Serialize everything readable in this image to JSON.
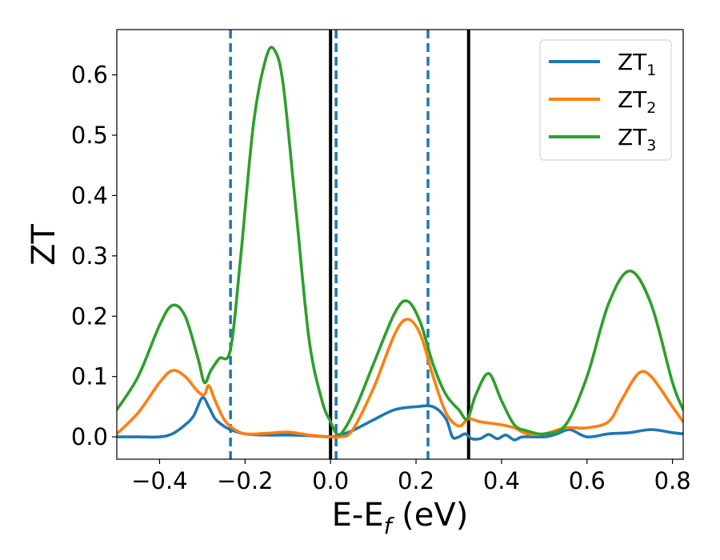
{
  "chart_data": {
    "type": "line",
    "xlabel": "E-E",
    "xlabel_sub": "f",
    "xlabel_unit": " (eV)",
    "ylabel": "ZT",
    "xlim": [
      -0.5,
      0.825
    ],
    "ylim": [
      -0.037,
      0.675
    ],
    "xticks": [
      -0.4,
      -0.2,
      0.0,
      0.2,
      0.4,
      0.6,
      0.8
    ],
    "xtick_labels": [
      "−0.4",
      "−0.2",
      "0.0",
      "0.2",
      "0.4",
      "0.6",
      "0.8"
    ],
    "yticks": [
      0.0,
      0.1,
      0.2,
      0.3,
      0.4,
      0.5,
      0.6
    ],
    "ytick_labels": [
      "0.0",
      "0.1",
      "0.2",
      "0.3",
      "0.4",
      "0.5",
      "0.6"
    ],
    "grid": false,
    "legend_position": "top-right",
    "vlines_dashed": [
      -0.234,
      0.013,
      0.228
    ],
    "vlines_dashed_color": "#1f77b4",
    "vlines_solid": [
      0.0,
      0.323
    ],
    "vlines_solid_color": "#000000",
    "series": [
      {
        "name": "ZT",
        "name_sub": "1",
        "color": "#1f77b4",
        "x": [
          -0.5,
          -0.45,
          -0.4,
          -0.37,
          -0.34,
          -0.32,
          -0.3,
          -0.285,
          -0.27,
          -0.25,
          -0.234,
          -0.2,
          -0.15,
          -0.1,
          -0.05,
          0.0,
          0.02,
          0.05,
          0.1,
          0.15,
          0.2,
          0.24,
          0.27,
          0.285,
          0.3,
          0.315,
          0.33,
          0.35,
          0.37,
          0.39,
          0.41,
          0.43,
          0.45,
          0.5,
          0.53,
          0.56,
          0.6,
          0.65,
          0.7,
          0.75,
          0.8,
          0.825
        ],
        "y": [
          0.0,
          0.0,
          0.0,
          0.005,
          0.02,
          0.035,
          0.065,
          0.05,
          0.03,
          0.018,
          0.012,
          0.005,
          0.003,
          0.003,
          0.002,
          0.0,
          0.003,
          0.01,
          0.028,
          0.045,
          0.05,
          0.05,
          0.03,
          0.0,
          0.0,
          0.005,
          -0.003,
          -0.003,
          0.004,
          -0.003,
          0.003,
          -0.005,
          0.0,
          0.0,
          0.005,
          0.012,
          0.0,
          0.005,
          0.007,
          0.012,
          0.007,
          0.005
        ]
      },
      {
        "name": "ZT",
        "name_sub": "2",
        "color": "#ff7f0e",
        "x": [
          -0.5,
          -0.45,
          -0.4,
          -0.37,
          -0.34,
          -0.31,
          -0.295,
          -0.285,
          -0.27,
          -0.25,
          -0.23,
          -0.2,
          -0.15,
          -0.1,
          -0.05,
          0.0,
          0.02,
          0.05,
          0.1,
          0.15,
          0.18,
          0.21,
          0.24,
          0.27,
          0.3,
          0.323,
          0.35,
          0.4,
          0.43,
          0.46,
          0.5,
          0.55,
          0.6,
          0.65,
          0.68,
          0.72,
          0.75,
          0.8,
          0.825
        ],
        "y": [
          0.005,
          0.04,
          0.09,
          0.11,
          0.1,
          0.075,
          0.07,
          0.085,
          0.06,
          0.03,
          0.015,
          0.005,
          0.006,
          0.008,
          0.003,
          0.0,
          0.0,
          0.01,
          0.08,
          0.17,
          0.195,
          0.17,
          0.1,
          0.04,
          0.018,
          0.03,
          0.025,
          0.02,
          0.015,
          0.005,
          0.005,
          0.015,
          0.015,
          0.025,
          0.06,
          0.105,
          0.1,
          0.05,
          0.025
        ]
      },
      {
        "name": "ZT",
        "name_sub": "3",
        "color": "#2ca02c",
        "x": [
          -0.5,
          -0.45,
          -0.4,
          -0.37,
          -0.34,
          -0.31,
          -0.295,
          -0.28,
          -0.26,
          -0.234,
          -0.21,
          -0.18,
          -0.15,
          -0.13,
          -0.11,
          -0.08,
          -0.05,
          -0.02,
          0.0,
          0.015,
          0.03,
          0.06,
          0.1,
          0.15,
          0.18,
          0.21,
          0.24,
          0.27,
          0.3,
          0.32,
          0.34,
          0.37,
          0.4,
          0.43,
          0.46,
          0.5,
          0.55,
          0.6,
          0.65,
          0.7,
          0.75,
          0.8,
          0.825
        ],
        "y": [
          0.045,
          0.1,
          0.185,
          0.218,
          0.2,
          0.13,
          0.09,
          0.11,
          0.13,
          0.145,
          0.3,
          0.52,
          0.63,
          0.64,
          0.58,
          0.37,
          0.16,
          0.06,
          0.025,
          0.005,
          0.01,
          0.05,
          0.12,
          0.205,
          0.225,
          0.19,
          0.12,
          0.07,
          0.045,
          0.03,
          0.07,
          0.105,
          0.06,
          0.02,
          0.01,
          0.005,
          0.02,
          0.1,
          0.22,
          0.275,
          0.22,
          0.09,
          0.045
        ]
      }
    ]
  }
}
